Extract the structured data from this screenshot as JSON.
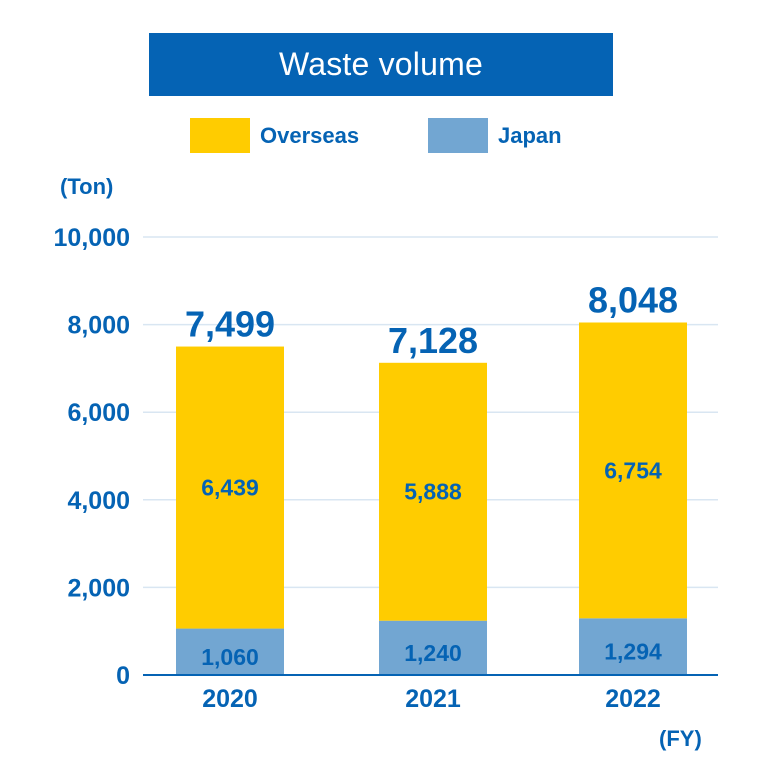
{
  "chart_data": {
    "type": "bar",
    "stacked": true,
    "title": "Waste volume",
    "ylabel": "(Ton)",
    "xlabel": "(FY)",
    "categories": [
      "2020",
      "2021",
      "2022"
    ],
    "series": [
      {
        "name": "Japan",
        "values": [
          1060,
          1240,
          1294
        ],
        "labels": [
          "1,060",
          "1,240",
          "1,294"
        ],
        "color": "#72a6d2"
      },
      {
        "name": "Overseas",
        "values": [
          6439,
          5888,
          6754
        ],
        "labels": [
          "6,439",
          "5,888",
          "6,754"
        ],
        "color": "#ffcc00"
      }
    ],
    "totals": [
      7499,
      7128,
      8048
    ],
    "total_labels": [
      "7,499",
      "7,128",
      "8,048"
    ],
    "ylim": [
      0,
      10000
    ],
    "yticks": [
      0,
      2000,
      4000,
      6000,
      8000,
      10000
    ],
    "ytick_labels": [
      "0",
      "2,000",
      "4,000",
      "6,000",
      "8,000",
      "10,000"
    ],
    "grid": true,
    "legend_position": "top"
  },
  "colors": {
    "accent": "#0563b4",
    "grid": "#d9e6f2",
    "overseas": "#ffcc00",
    "japan": "#72a6d2",
    "text": "#0563b4"
  }
}
